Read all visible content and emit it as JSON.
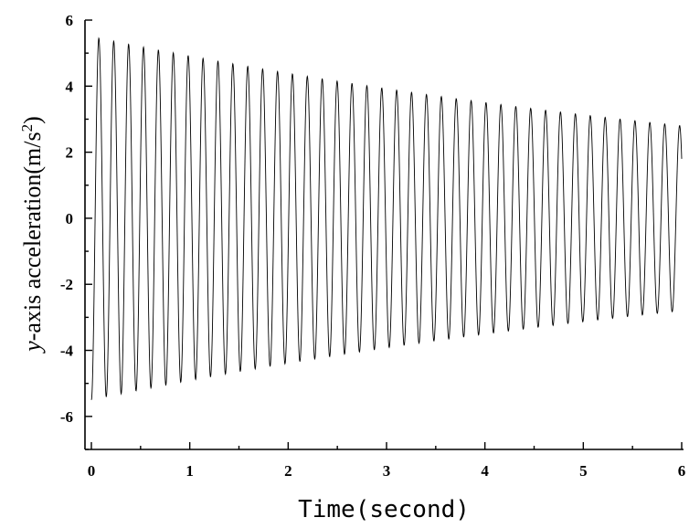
{
  "chart_data": {
    "type": "line",
    "title": "",
    "xlabel": "Time(second)",
    "ylabel_italic": "y",
    "ylabel_rest": "-axis acceleration(m/s",
    "ylabel_sup": "2",
    "ylabel_close": ")",
    "xlim": [
      0,
      6
    ],
    "ylim": [
      -7,
      6
    ],
    "x_ticks": [
      "0",
      "1",
      "2",
      "3",
      "4",
      "5",
      "6"
    ],
    "y_ticks": [
      "6",
      "4",
      "2",
      "0",
      "-2",
      "-4",
      "-6"
    ],
    "grid": false,
    "legend": "none",
    "line_color": "#000000",
    "series": [
      {
        "signal": "damped sinusoid",
        "frequency_hz": 6.6,
        "initial_amplitude": 5.5,
        "final_amplitude": 2.8,
        "value_at_x0": -5.5,
        "value_at_x6": 1.8,
        "x_start": 0,
        "x_end": 6
      }
    ]
  }
}
